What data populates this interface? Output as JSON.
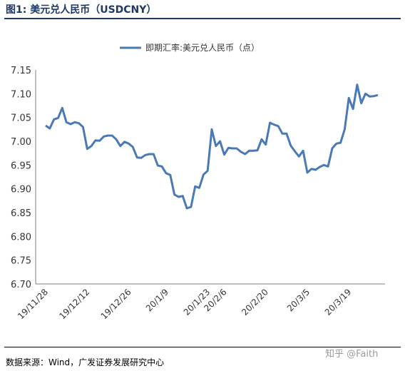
{
  "figure_title": "图1:  美元兑人民币（USDCNY）",
  "source": "数据来源：Wind，广发证券发展研究中心",
  "watermark": "知乎 @Faith",
  "chart_data": {
    "type": "line",
    "title": "",
    "xlabel": "",
    "ylabel": "",
    "ylim": [
      6.7,
      7.15
    ],
    "yticks": [
      "7.15",
      "7.10",
      "7.05",
      "7.00",
      "6.95",
      "6.90",
      "6.85",
      "6.80",
      "6.75",
      "6.70"
    ],
    "xticks": [
      "19/11/28",
      "19/12/12",
      "19/12/26",
      "20/1/9",
      "20/1/23",
      "20/2/6",
      "20/2/20",
      "20/3/5",
      "20/3/19"
    ],
    "grid": false,
    "legend_position": "top-center",
    "series_color": "#4a7ab5",
    "series": [
      {
        "name": "即期汇率:美元兑人民币（点）",
        "x": [
          "19/11/28",
          "19/11/29",
          "19/12/2",
          "19/12/3",
          "19/12/4",
          "19/12/5",
          "19/12/6",
          "19/12/9",
          "19/12/10",
          "19/12/11",
          "19/12/12",
          "19/12/13",
          "19/12/16",
          "19/12/17",
          "19/12/18",
          "19/12/19",
          "19/12/20",
          "19/12/23",
          "19/12/24",
          "19/12/25",
          "19/12/26",
          "19/12/27",
          "19/12/30",
          "19/12/31",
          "20/1/2",
          "20/1/3",
          "20/1/6",
          "20/1/7",
          "20/1/8",
          "20/1/9",
          "20/1/10",
          "20/1/13",
          "20/1/14",
          "20/1/15",
          "20/1/16",
          "20/1/17",
          "20/1/20",
          "20/1/21",
          "20/1/22",
          "20/1/23",
          "20/2/3",
          "20/2/4",
          "20/2/5",
          "20/2/6",
          "20/2/7",
          "20/2/10",
          "20/2/11",
          "20/2/12",
          "20/2/13",
          "20/2/14",
          "20/2/17",
          "20/2/18",
          "20/2/19",
          "20/2/20",
          "20/2/21",
          "20/2/24",
          "20/2/25",
          "20/2/26",
          "20/2/27",
          "20/2/28",
          "20/3/2",
          "20/3/3",
          "20/3/4",
          "20/3/5",
          "20/3/6",
          "20/3/9",
          "20/3/10",
          "20/3/11",
          "20/3/12",
          "20/3/13",
          "20/3/16",
          "20/3/17",
          "20/3/18",
          "20/3/19",
          "20/3/20",
          "20/3/23",
          "20/3/24",
          "20/3/25",
          "20/3/26",
          "20/3/27",
          "20/3/30"
        ],
        "values": [
          7.033,
          7.027,
          7.046,
          7.049,
          7.07,
          7.04,
          7.036,
          7.04,
          7.038,
          7.03,
          6.984,
          6.99,
          7.002,
          7.001,
          7.01,
          7.012,
          7.012,
          7.004,
          6.99,
          6.999,
          6.995,
          6.988,
          6.966,
          6.965,
          6.971,
          6.973,
          6.973,
          6.949,
          6.947,
          6.933,
          6.929,
          6.888,
          6.883,
          6.885,
          6.859,
          6.862,
          6.905,
          6.902,
          6.93,
          6.938,
          7.025,
          6.99,
          7.0,
          6.972,
          6.986,
          6.985,
          6.985,
          6.978,
          6.973,
          6.98,
          6.98,
          6.981,
          7.004,
          6.993,
          7.039,
          7.035,
          7.032,
          7.016,
          7.016,
          6.991,
          6.979,
          6.968,
          6.98,
          6.934,
          6.942,
          6.94,
          6.946,
          6.95,
          6.947,
          6.985,
          6.995,
          6.997,
          7.025,
          7.091,
          7.068,
          7.119,
          7.08,
          7.1,
          7.094,
          7.095,
          7.097
        ]
      }
    ]
  }
}
